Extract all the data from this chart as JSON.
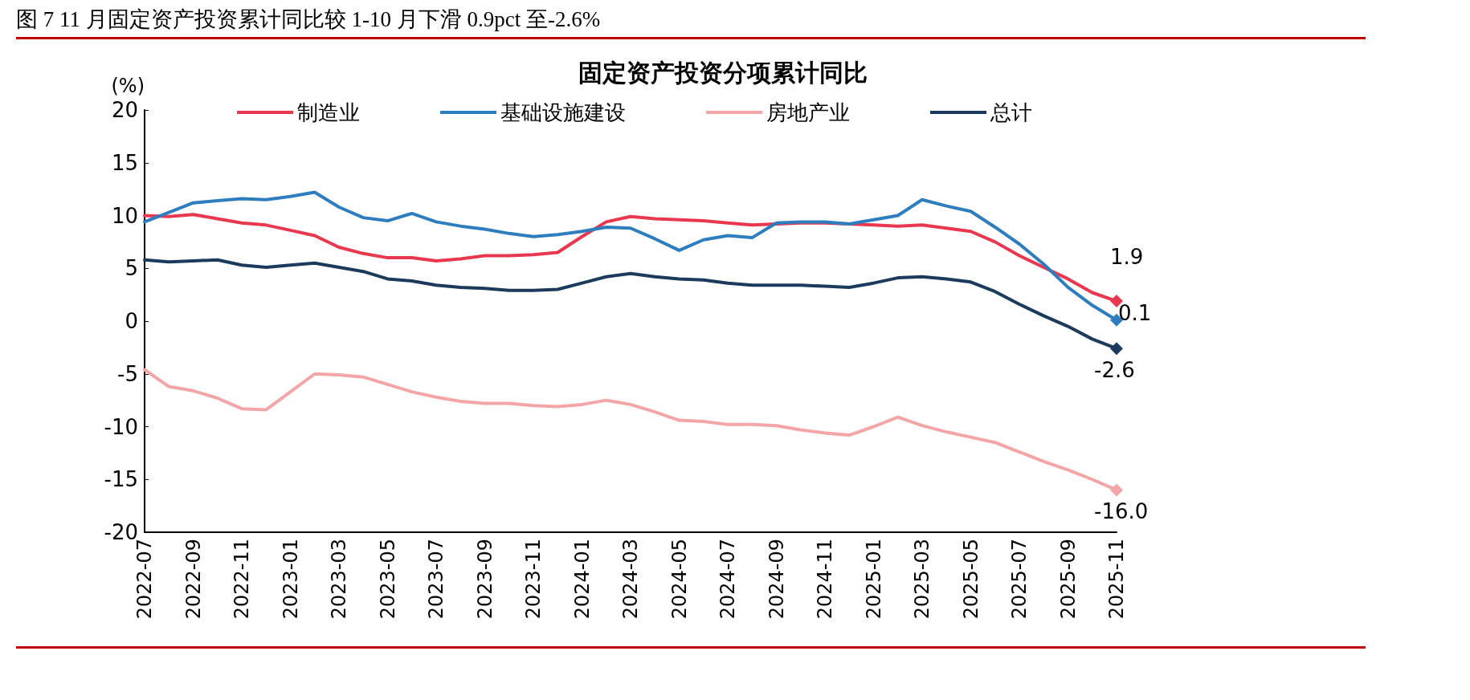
{
  "chart_data": {
    "type": "line",
    "title": "图 7 11 月固定资产投资累计同比较 1-10 月下滑 0.9pct 至-2.6%",
    "subtitle": "固定资产投资分项累计同比",
    "ylabel": "(%)",
    "categories": [
      "2022-07",
      null,
      "2022-09",
      null,
      "2022-11",
      null,
      "2023-01",
      null,
      "2023-03",
      null,
      "2023-05",
      null,
      "2023-07",
      null,
      "2023-09",
      null,
      "2023-11",
      null,
      "2024-01",
      null,
      "2024-03",
      null,
      "2024-05",
      null,
      "2024-07",
      null,
      "2024-09",
      null,
      "2024-11",
      null,
      "2025-01",
      null,
      "2025-03",
      null,
      "2025-05",
      null,
      "2025-07",
      null,
      "2025-09",
      null,
      "2025-11"
    ],
    "series": [
      {
        "name": "制造业",
        "color": "#e8384f",
        "values": [
          10.0,
          9.9,
          10.1,
          9.7,
          9.3,
          9.1,
          8.6,
          8.1,
          7.0,
          6.4,
          6.0,
          6.0,
          5.7,
          5.9,
          6.2,
          6.2,
          6.3,
          6.5,
          8.0,
          9.4,
          9.9,
          9.7,
          9.6,
          9.5,
          9.3,
          9.1,
          9.2,
          9.3,
          9.3,
          9.2,
          9.1,
          9.0,
          9.1,
          8.8,
          8.5,
          7.5,
          6.2,
          5.1,
          4.0,
          2.7,
          1.9
        ],
        "value_labels": [
          null,
          null,
          null,
          null,
          null,
          null,
          null,
          null,
          null,
          null,
          null,
          null,
          null,
          null,
          null,
          null,
          null,
          null,
          null,
          null,
          null,
          null,
          null,
          null,
          null,
          null,
          null,
          null,
          null,
          null,
          null,
          null,
          null,
          null,
          null,
          null,
          null,
          null,
          null,
          null,
          "1.9"
        ]
      },
      {
        "name": "基础设施建设",
        "color": "#2e7ebf",
        "values": [
          9.4,
          10.3,
          11.2,
          11.4,
          11.6,
          11.5,
          11.8,
          12.2,
          10.8,
          9.8,
          9.5,
          10.2,
          9.4,
          9.0,
          8.7,
          8.3,
          8.0,
          8.2,
          8.5,
          8.9,
          8.8,
          7.8,
          6.7,
          7.7,
          8.1,
          7.9,
          9.3,
          9.4,
          9.4,
          9.2,
          9.6,
          10.0,
          11.5,
          10.9,
          10.4,
          8.9,
          7.3,
          5.4,
          3.2,
          1.5,
          0.1
        ],
        "value_labels": [
          null,
          null,
          null,
          null,
          null,
          null,
          null,
          null,
          null,
          null,
          null,
          null,
          null,
          null,
          null,
          null,
          null,
          null,
          null,
          null,
          null,
          null,
          null,
          null,
          null,
          null,
          null,
          null,
          null,
          null,
          null,
          null,
          null,
          null,
          null,
          null,
          null,
          null,
          null,
          null,
          "0.1"
        ]
      },
      {
        "name": "房地产业",
        "color": "#f4a5a8",
        "values": [
          -4.6,
          -6.2,
          -6.6,
          -7.3,
          -8.3,
          -8.4,
          -6.7,
          -5.0,
          -5.1,
          -5.3,
          -6.0,
          -6.7,
          -7.2,
          -7.6,
          -7.8,
          -7.8,
          -8.0,
          -8.1,
          -7.9,
          -7.5,
          -7.9,
          -8.6,
          -9.4,
          -9.5,
          -9.8,
          -9.8,
          -9.9,
          -10.3,
          -10.6,
          -10.8,
          -10.0,
          -9.1,
          -9.9,
          -10.5,
          -11.0,
          -11.5,
          -12.4,
          -13.3,
          -14.1,
          -15.0,
          -16.0
        ],
        "value_labels": [
          null,
          null,
          null,
          null,
          null,
          null,
          null,
          null,
          null,
          null,
          null,
          null,
          null,
          null,
          null,
          null,
          null,
          null,
          null,
          null,
          null,
          null,
          null,
          null,
          null,
          null,
          null,
          null,
          null,
          null,
          null,
          null,
          null,
          null,
          null,
          null,
          null,
          null,
          null,
          null,
          "-16.0"
        ]
      },
      {
        "name": "总计",
        "color": "#1b3a5c",
        "values": [
          5.8,
          5.6,
          5.7,
          5.8,
          5.3,
          5.1,
          5.3,
          5.5,
          5.1,
          4.7,
          4.0,
          3.8,
          3.4,
          3.2,
          3.1,
          2.9,
          2.9,
          3.0,
          3.6,
          4.2,
          4.5,
          4.2,
          4.0,
          3.9,
          3.6,
          3.4,
          3.4,
          3.4,
          3.3,
          3.2,
          3.6,
          4.1,
          4.2,
          4.0,
          3.7,
          2.8,
          1.6,
          0.5,
          -0.5,
          -1.7,
          -2.6
        ],
        "value_labels": [
          null,
          null,
          null,
          null,
          null,
          null,
          null,
          null,
          null,
          null,
          null,
          null,
          null,
          null,
          null,
          null,
          null,
          null,
          null,
          null,
          null,
          null,
          null,
          null,
          null,
          null,
          null,
          null,
          null,
          null,
          null,
          null,
          null,
          null,
          null,
          null,
          null,
          null,
          null,
          null,
          "-2.6"
        ]
      }
    ],
    "ylim": [
      -20,
      20
    ],
    "yticks": [
      -20,
      -15,
      -10,
      -5,
      0,
      5,
      10,
      15,
      20
    ],
    "grid": false,
    "legend": "top",
    "line_style": "solid"
  }
}
